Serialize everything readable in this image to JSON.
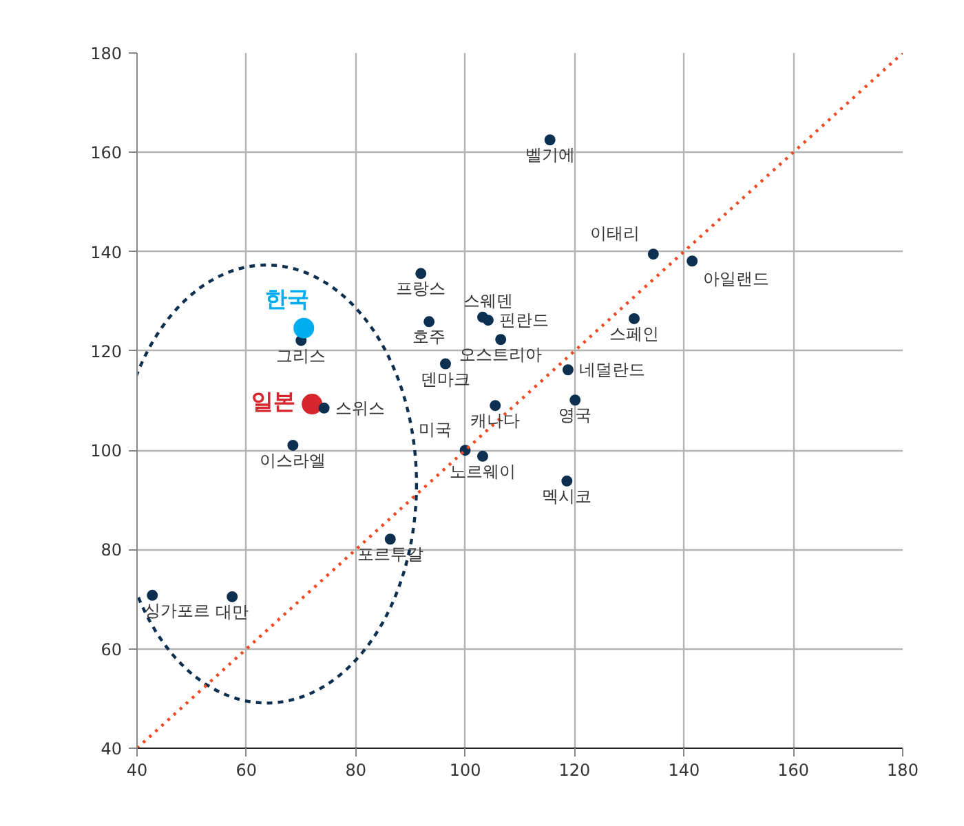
{
  "chart_data": {
    "type": "scatter",
    "xlim": [
      40,
      180
    ],
    "ylim": [
      40,
      180
    ],
    "xticks": [
      40,
      60,
      80,
      100,
      120,
      140,
      160,
      180
    ],
    "yticks": [
      40,
      60,
      80,
      100,
      120,
      140,
      160,
      180
    ],
    "grid": true,
    "marker": "circle",
    "series": [
      {
        "name": "벨기에",
        "color": "#0d3050",
        "x": [
          115.5
        ],
        "values": [
          162.5
        ]
      },
      {
        "name": "이태리",
        "color": "#0d3050",
        "x": [
          134.4
        ],
        "values": [
          139.5
        ]
      },
      {
        "name": "아일랜드",
        "color": "#0d3050",
        "x": [
          141.5
        ],
        "values": [
          138.1
        ]
      },
      {
        "name": "프랑스",
        "color": "#0d3050",
        "x": [
          91.9
        ],
        "values": [
          135.6
        ]
      },
      {
        "name": "스웨덴",
        "color": "#0d3050",
        "x": [
          103.2
        ],
        "values": [
          126.8
        ]
      },
      {
        "name": "핀란드",
        "color": "#0d3050",
        "x": [
          104.2
        ],
        "values": [
          126.2
        ]
      },
      {
        "name": "호주",
        "color": "#0d3050",
        "x": [
          93.4
        ],
        "values": [
          125.9
        ]
      },
      {
        "name": "오스트리아",
        "color": "#0d3050",
        "x": [
          106.5
        ],
        "values": [
          122.3
        ]
      },
      {
        "name": "스페인",
        "color": "#0d3050",
        "x": [
          130.9
        ],
        "values": [
          126.5
        ]
      },
      {
        "name": "덴마크",
        "color": "#0d3050",
        "x": [
          96.4
        ],
        "values": [
          117.4
        ]
      },
      {
        "name": "네덜란드",
        "color": "#0d3050",
        "x": [
          118.8
        ],
        "values": [
          116.2
        ]
      },
      {
        "name": "영국",
        "color": "#0d3050",
        "x": [
          120.1
        ],
        "values": [
          110.1
        ]
      },
      {
        "name": "캐나다",
        "color": "#0d3050",
        "x": [
          105.5
        ],
        "values": [
          109.0
        ]
      },
      {
        "name": "미국",
        "color": "#0d3050",
        "x": [
          100.0
        ],
        "values": [
          100.0
        ]
      },
      {
        "name": "노르웨이",
        "color": "#0d3050",
        "x": [
          103.2
        ],
        "values": [
          98.8
        ]
      },
      {
        "name": "멕시코",
        "color": "#0d3050",
        "x": [
          118.6
        ],
        "values": [
          93.8
        ]
      },
      {
        "name": "그리스",
        "color": "#0d3050",
        "x": [
          70.0
        ],
        "values": [
          122.1
        ]
      },
      {
        "name": "한국",
        "color": "#00aeef",
        "x": [
          70.5
        ],
        "values": [
          124.6
        ]
      },
      {
        "name": "일본",
        "color": "#d7262e",
        "x": [
          72.0
        ],
        "values": [
          109.3
        ]
      },
      {
        "name": "스위스",
        "color": "#0d3050",
        "x": [
          74.2
        ],
        "values": [
          108.5
        ]
      },
      {
        "name": "이스라엘",
        "color": "#0d3050",
        "x": [
          68.5
        ],
        "values": [
          101.0
        ]
      },
      {
        "name": "포르투갈",
        "color": "#0d3050",
        "x": [
          86.3
        ],
        "values": [
          82.1
        ]
      },
      {
        "name": "싱가포르",
        "color": "#0d3050",
        "x": [
          42.8
        ],
        "values": [
          70.8
        ]
      },
      {
        "name": "대만",
        "color": "#0d3050",
        "x": [
          57.4
        ],
        "values": [
          70.5
        ]
      },
      {
        "type": "line",
        "color": "#f04a23",
        "line_style": "dotted",
        "marker": "none",
        "x": [
          40,
          180
        ],
        "values": [
          40,
          180
        ]
      }
    ]
  }
}
